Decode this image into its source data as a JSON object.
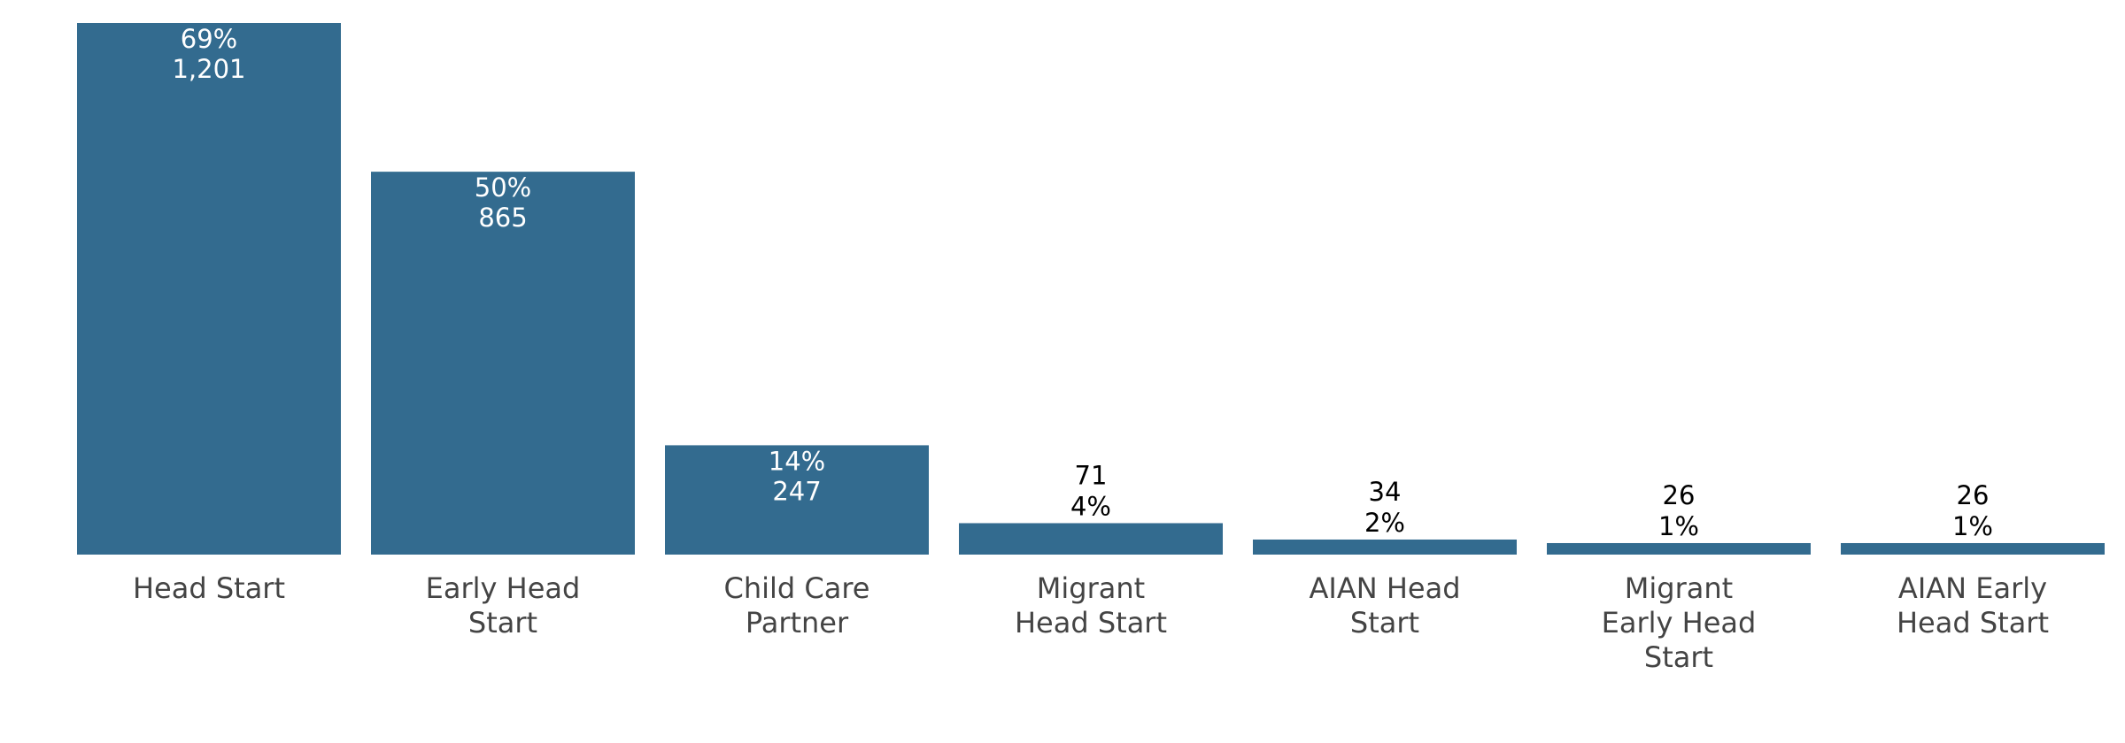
{
  "chart_data": {
    "type": "bar",
    "categories": [
      [
        "Head Start"
      ],
      [
        "Early Head",
        "Start"
      ],
      [
        "Child Care",
        "Partner"
      ],
      [
        "Migrant",
        "Head Start"
      ],
      [
        "AIAN Head",
        "Start"
      ],
      [
        "Migrant",
        "Early Head",
        "Start"
      ],
      [
        "AIAN Early",
        "Head Start"
      ]
    ],
    "values": [
      1201,
      865,
      247,
      71,
      34,
      26,
      26
    ],
    "value_labels": [
      "1,201",
      "865",
      "247",
      "71",
      "34",
      "26",
      "26"
    ],
    "shares": [
      69,
      50,
      14,
      4,
      2,
      1,
      1
    ],
    "share_labels": [
      "69%",
      "50%",
      "14%",
      "4%",
      "2%",
      "1%",
      "1%"
    ],
    "color": "#336b8f"
  }
}
